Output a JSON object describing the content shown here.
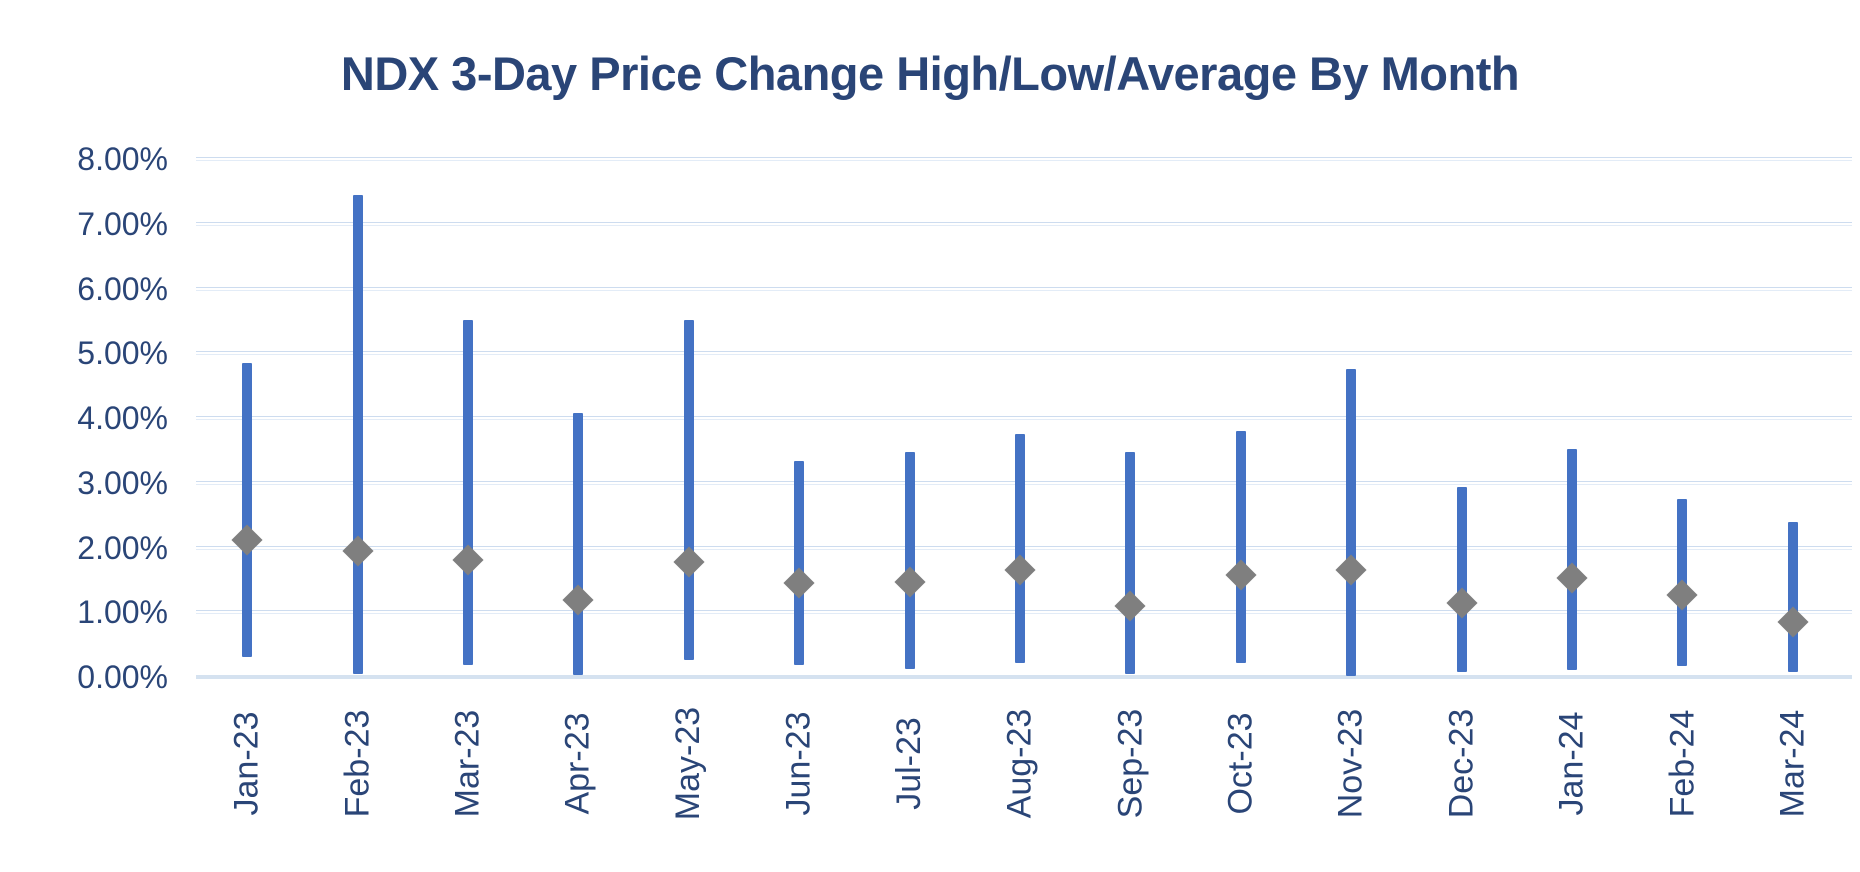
{
  "title": "NDX 3-Day Price Change High/Low/Average By Month",
  "colors": {
    "bar": "#4472C4",
    "marker": "#7F7F7F",
    "text_navy": "#2A4577",
    "gridline": "#CDDCEF",
    "zero_line": "#D5E2F0",
    "background": "#FFFFFF"
  },
  "y_axis": {
    "tick_labels": [
      "8.00%",
      "7.00%",
      "6.00%",
      "5.00%",
      "4.00%",
      "3.00%",
      "2.00%",
      "1.00%",
      "0.00%"
    ],
    "tick_values": [
      8,
      7,
      6,
      5,
      4,
      3,
      2,
      1,
      0
    ]
  },
  "chart_data": {
    "type": "bar",
    "subtype": "high-low-average floating range bars with diamond average markers",
    "title": "NDX 3-Day Price Change High/Low/Average By Month",
    "categories": [
      "Jan-23",
      "Feb-23",
      "Mar-23",
      "Apr-23",
      "May-23",
      "Jun-23",
      "Jul-23",
      "Aug-23",
      "Sep-23",
      "Oct-23",
      "Nov-23",
      "Dec-23",
      "Jan-24",
      "Feb-24",
      "Mar-24"
    ],
    "series": [
      {
        "name": "High",
        "values": [
          4.85,
          7.45,
          5.51,
          4.08,
          5.51,
          3.33,
          3.47,
          3.76,
          3.47,
          3.8,
          4.75,
          2.93,
          3.52,
          2.75,
          2.4
        ]
      },
      {
        "name": "Low",
        "values": [
          0.31,
          0.05,
          0.19,
          0.03,
          0.26,
          0.19,
          0.13,
          0.21,
          0.05,
          0.22,
          0.02,
          0.07,
          0.11,
          0.17,
          0.07
        ]
      },
      {
        "name": "Average",
        "values": [
          2.12,
          1.94,
          1.8,
          1.19,
          1.77,
          1.45,
          1.47,
          1.65,
          1.1,
          1.58,
          1.65,
          1.14,
          1.53,
          1.27,
          0.85
        ]
      }
    ],
    "xlabel": "",
    "ylabel": "",
    "ylim": [
      0,
      8
    ],
    "y_tick_format": "0.00%",
    "grid": true,
    "legend": "none"
  }
}
